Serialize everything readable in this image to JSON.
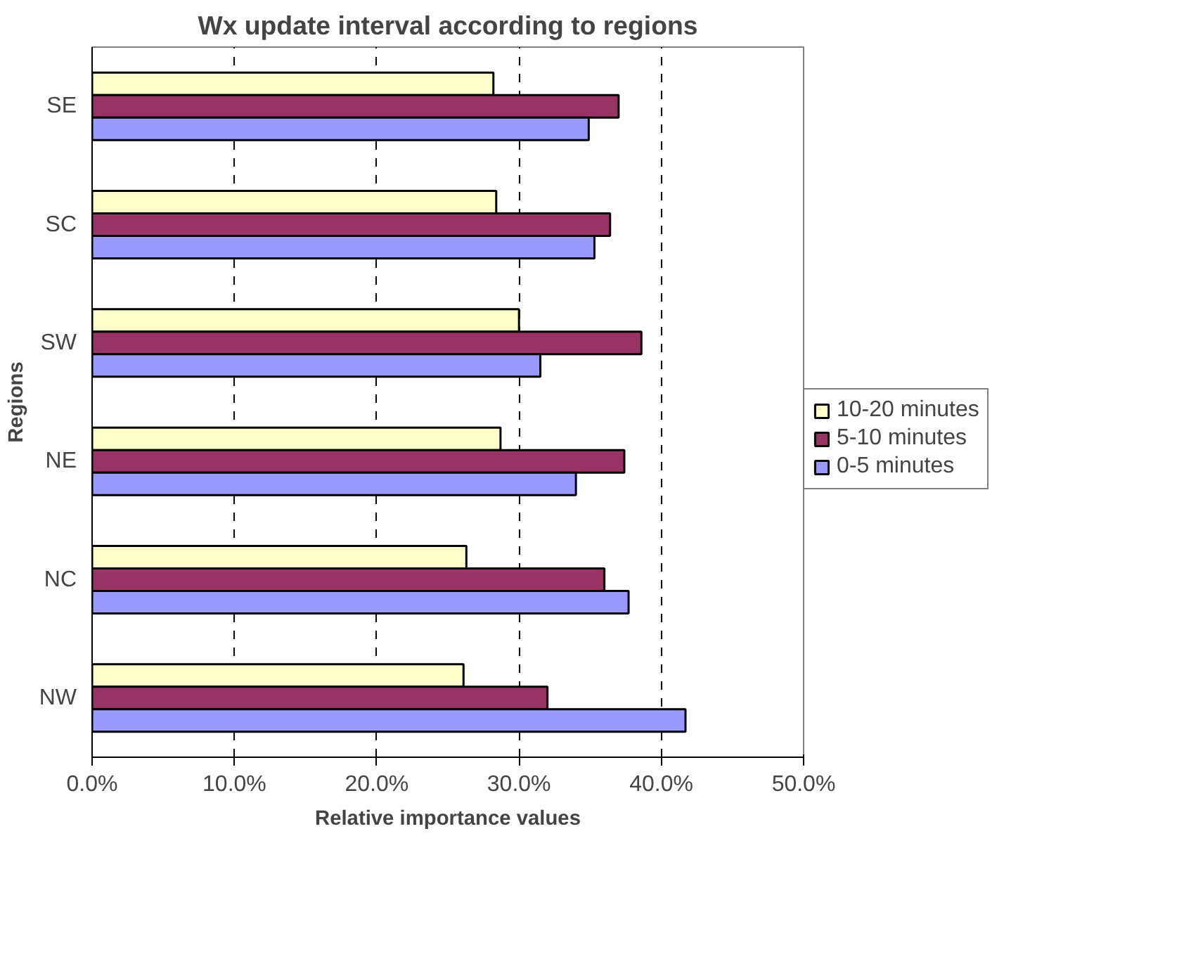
{
  "chart_data": {
    "type": "bar",
    "orientation": "horizontal",
    "title": "Wx update interval according to regions",
    "xlabel": "Relative importance values",
    "ylabel": "Regions",
    "categories": [
      "SE",
      "SC",
      "SW",
      "NE",
      "NC",
      "NW"
    ],
    "series": [
      {
        "name": "10-20 minutes",
        "color": "#ffffcc",
        "values": [
          28.2,
          28.4,
          30.0,
          28.7,
          26.3,
          26.1
        ]
      },
      {
        "name": "5-10 minutes",
        "color": "#993366",
        "values": [
          37.0,
          36.4,
          38.6,
          37.4,
          36.0,
          32.0
        ]
      },
      {
        "name": "0-5 minutes",
        "color": "#9999ff",
        "values": [
          34.9,
          35.3,
          31.5,
          34.0,
          37.7,
          41.7
        ]
      }
    ],
    "xlim": [
      0,
      50
    ],
    "xticks": [
      {
        "value": 0,
        "label": "0.0%"
      },
      {
        "value": 10,
        "label": "10.0%"
      },
      {
        "value": 20,
        "label": "20.0%"
      },
      {
        "value": 30,
        "label": "30.0%"
      },
      {
        "value": 40,
        "label": "40.0%"
      },
      {
        "value": 50,
        "label": "50.0%"
      }
    ],
    "grid": "x",
    "legend": "right"
  }
}
